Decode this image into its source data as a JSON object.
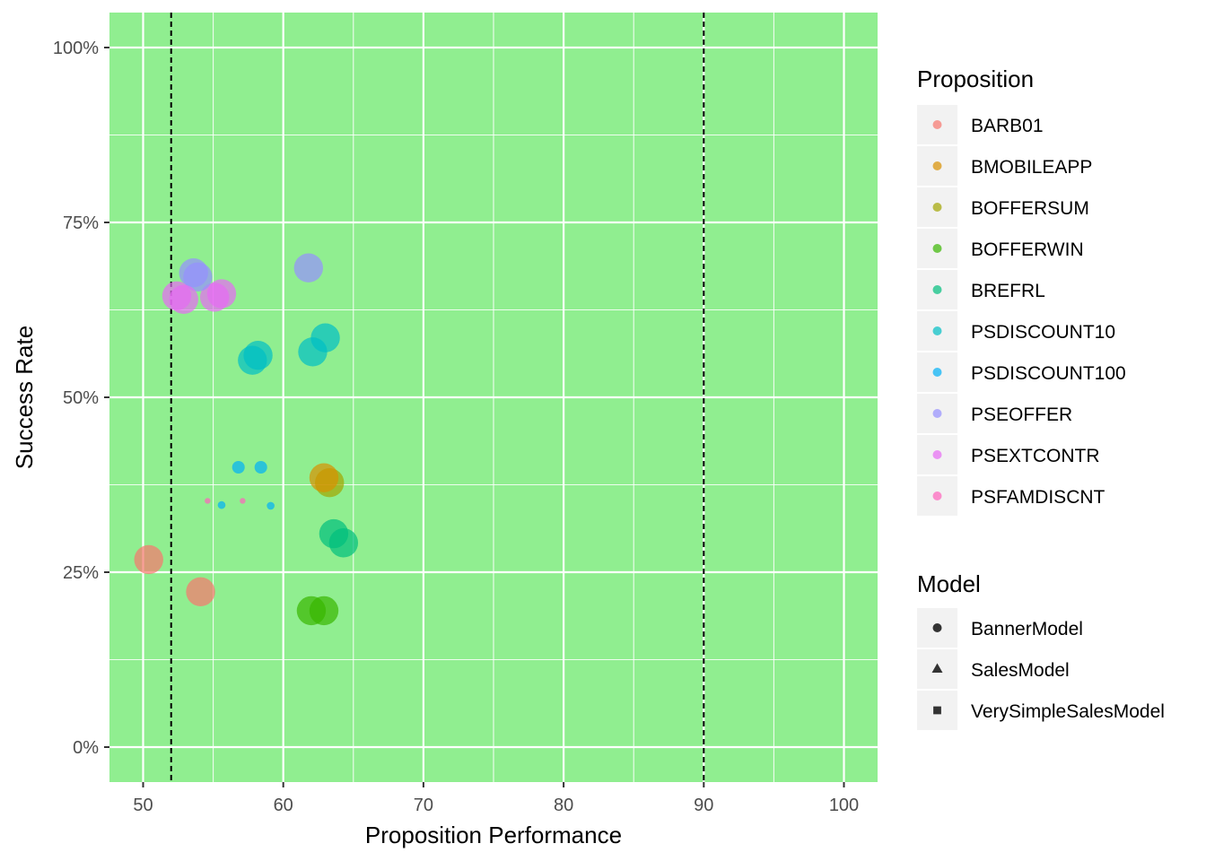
{
  "chart_data": {
    "type": "scatter",
    "xlabel": "Proposition Performance",
    "ylabel": "Success Rate",
    "xlim": [
      47.6,
      102.4
    ],
    "ylim": [
      -0.05,
      1.05
    ],
    "x_ticks": [
      50,
      60,
      70,
      80,
      90,
      100
    ],
    "x_tick_labels": [
      "50",
      "60",
      "70",
      "80",
      "90",
      "100"
    ],
    "y_ticks": [
      0,
      0.25,
      0.5,
      0.75,
      1.0
    ],
    "y_tick_labels": [
      "0%",
      "25%",
      "50%",
      "75%",
      "100%"
    ],
    "panel_background": "#90EE90",
    "grid": true,
    "reference_lines_x": [
      52,
      90
    ],
    "legend_position": "right",
    "color_legend": {
      "title": "Proposition",
      "items": [
        {
          "label": "BARB01",
          "color": "#F8766D"
        },
        {
          "label": "BMOBILEAPP",
          "color": "#D89000"
        },
        {
          "label": "BOFFERSUM",
          "color": "#A3A500"
        },
        {
          "label": "BOFFERWIN",
          "color": "#39B600"
        },
        {
          "label": "BREFRL",
          "color": "#00BF7D"
        },
        {
          "label": "PSDISCOUNT10",
          "color": "#00BFC4"
        },
        {
          "label": "PSDISCOUNT100",
          "color": "#00B0F6"
        },
        {
          "label": "PSEOFFER",
          "color": "#9590FF"
        },
        {
          "label": "PSEXTCONTR",
          "color": "#E76BF3"
        },
        {
          "label": "PSFAMDISCNT",
          "color": "#FF62BC"
        }
      ]
    },
    "shape_legend": {
      "title": "Model",
      "items": [
        {
          "label": "BannerModel",
          "shape": "circle"
        },
        {
          "label": "SalesModel",
          "shape": "triangle"
        },
        {
          "label": "VerySimpleSalesModel",
          "shape": "square"
        }
      ]
    },
    "points": [
      {
        "x": 50.4,
        "y": 0.268,
        "proposition": "BARB01",
        "model": "BannerModel",
        "size": 3
      },
      {
        "x": 54.1,
        "y": 0.222,
        "proposition": "BARB01",
        "model": "BannerModel",
        "size": 3
      },
      {
        "x": 63.3,
        "y": 0.378,
        "proposition": "BOFFERSUM",
        "model": "BannerModel",
        "size": 3
      },
      {
        "x": 62.9,
        "y": 0.385,
        "proposition": "BMOBILEAPP",
        "model": "BannerModel",
        "size": 3
      },
      {
        "x": 62.9,
        "y": 0.195,
        "proposition": "BOFFERWIN",
        "model": "BannerModel",
        "size": 3
      },
      {
        "x": 62.0,
        "y": 0.195,
        "proposition": "BOFFERWIN",
        "model": "BannerModel",
        "size": 3
      },
      {
        "x": 63.6,
        "y": 0.305,
        "proposition": "BREFRL",
        "model": "BannerModel",
        "size": 3
      },
      {
        "x": 64.3,
        "y": 0.292,
        "proposition": "BREFRL",
        "model": "BannerModel",
        "size": 3
      },
      {
        "x": 61.8,
        "y": 0.685,
        "proposition": "PSEOFFER",
        "model": "SalesModel",
        "size": 3
      },
      {
        "x": 55.6,
        "y": 0.648,
        "proposition": "PSEXTCONTR",
        "model": "SalesModel",
        "size": 3
      },
      {
        "x": 55.1,
        "y": 0.643,
        "proposition": "PSEXTCONTR",
        "model": "SalesModel",
        "size": 3
      },
      {
        "x": 63.0,
        "y": 0.585,
        "proposition": "PSDISCOUNT10",
        "model": "SalesModel",
        "size": 3
      },
      {
        "x": 62.1,
        "y": 0.565,
        "proposition": "PSDISCOUNT10",
        "model": "SalesModel",
        "size": 3
      },
      {
        "x": 53.6,
        "y": 0.678,
        "proposition": "PSEOFFER",
        "model": "VerySimpleSalesModel",
        "size": 3
      },
      {
        "x": 53.9,
        "y": 0.672,
        "proposition": "PSEOFFER",
        "model": "VerySimpleSalesModel",
        "size": 3
      },
      {
        "x": 52.4,
        "y": 0.645,
        "proposition": "PSEXTCONTR",
        "model": "VerySimpleSalesModel",
        "size": 3
      },
      {
        "x": 52.9,
        "y": 0.64,
        "proposition": "PSEXTCONTR",
        "model": "VerySimpleSalesModel",
        "size": 3
      },
      {
        "x": 58.2,
        "y": 0.56,
        "proposition": "PSDISCOUNT10",
        "model": "VerySimpleSalesModel",
        "size": 3
      },
      {
        "x": 57.8,
        "y": 0.553,
        "proposition": "PSDISCOUNT10",
        "model": "VerySimpleSalesModel",
        "size": 3
      },
      {
        "x": 56.8,
        "y": 0.4,
        "proposition": "PSDISCOUNT100",
        "model": "SalesModel",
        "size": 1.3
      },
      {
        "x": 58.4,
        "y": 0.4,
        "proposition": "PSDISCOUNT100",
        "model": "VerySimpleSalesModel",
        "size": 1.3
      },
      {
        "x": 55.6,
        "y": 0.346,
        "proposition": "PSDISCOUNT100",
        "model": "SalesModel",
        "size": 0.8
      },
      {
        "x": 59.1,
        "y": 0.345,
        "proposition": "PSDISCOUNT100",
        "model": "VerySimpleSalesModel",
        "size": 0.8
      },
      {
        "x": 54.6,
        "y": 0.352,
        "proposition": "PSFAMDISCNT",
        "model": "SalesModel",
        "size": 0.6
      },
      {
        "x": 57.1,
        "y": 0.352,
        "proposition": "PSFAMDISCNT",
        "model": "VerySimpleSalesModel",
        "size": 0.6
      }
    ]
  }
}
